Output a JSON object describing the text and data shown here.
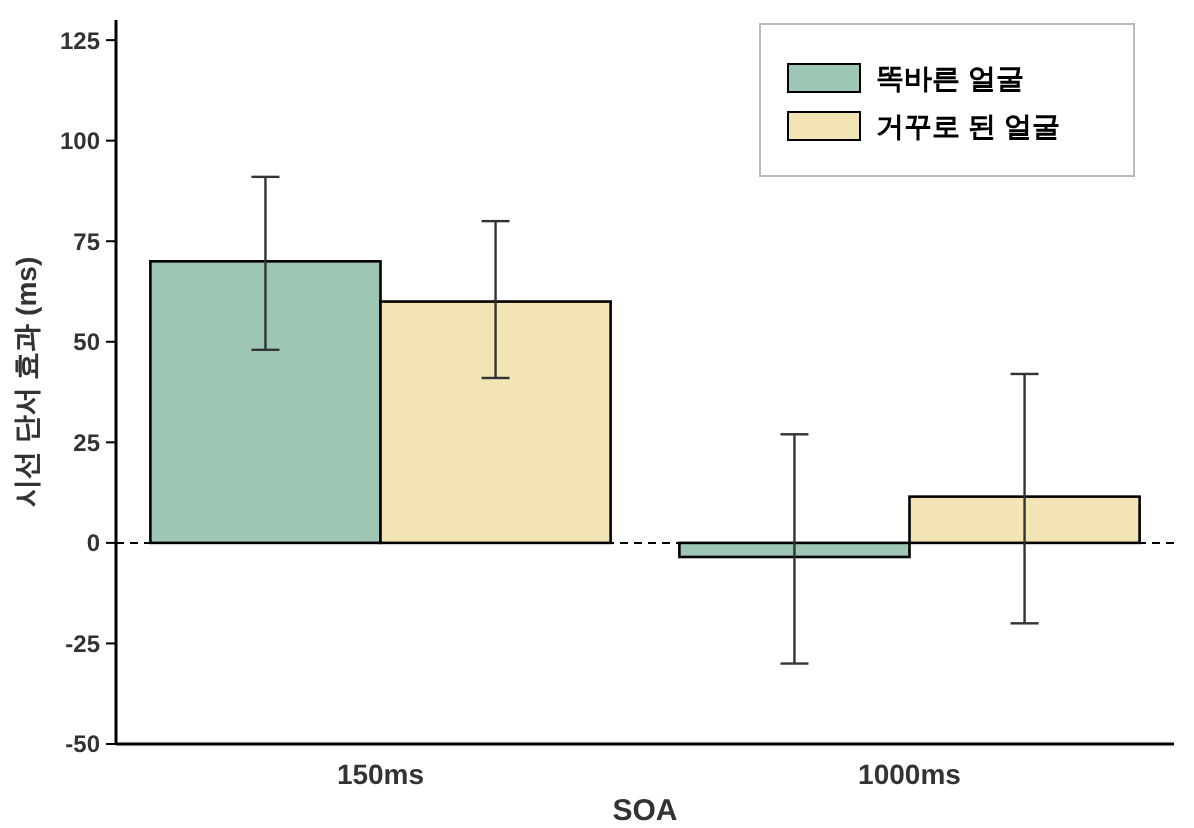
{
  "chart_data": {
    "type": "bar",
    "xlabel": "SOA",
    "ylabel": "시선 단서 효과 (ms)",
    "categories": [
      "150ms",
      "1000ms"
    ],
    "series": [
      {
        "name": "똑바른 얼굴",
        "color": "#9dc6b4",
        "values": [
          70,
          -3.5
        ],
        "errors": [
          [
            48,
            91
          ],
          [
            -30,
            27
          ]
        ]
      },
      {
        "name": "거꾸로 된 얼굴",
        "color": "#f3e4b5",
        "values": [
          60,
          11.5
        ],
        "errors": [
          [
            41,
            80
          ],
          [
            -20,
            42
          ]
        ]
      }
    ],
    "ylim": [
      -50,
      130
    ],
    "yticks": [
      -50,
      -25,
      0,
      25,
      50,
      75,
      100,
      125
    ],
    "ref_lines": [
      {
        "axis": "y",
        "value": 0,
        "line_style": "dashed",
        "color": "#000000"
      }
    ],
    "legend": "top right"
  }
}
